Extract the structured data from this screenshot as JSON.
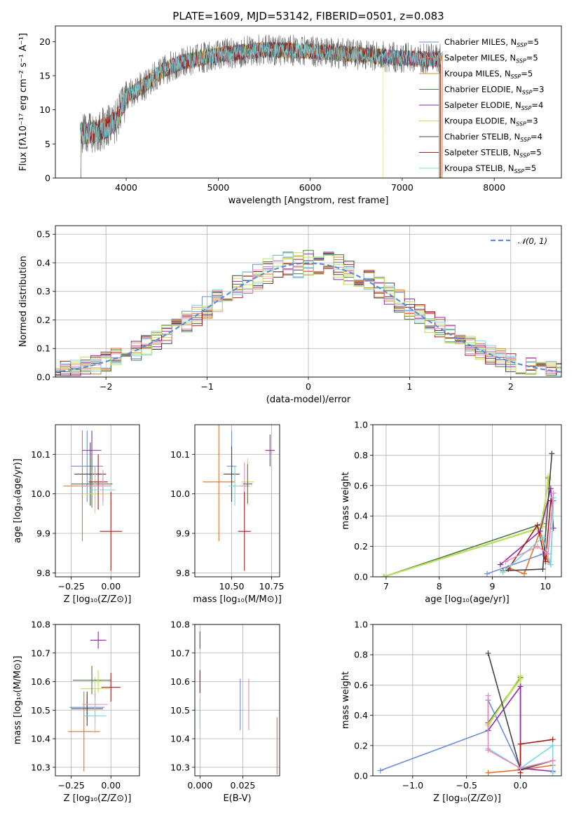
{
  "colors": {
    "grid": "#b0b0b0",
    "series": [
      "#6a8fd6",
      "#e8702a",
      "#d98f2c",
      "#4f7a4f",
      "#8e2aa8",
      "#c9dd5a",
      "#444444",
      "#a61b1b",
      "#79d8e0"
    ],
    "extra": [
      "#6fd6e0",
      "#e88ab8",
      "#b7e35a"
    ],
    "gaussian": "#5b8ed8"
  },
  "chart_data": [
    {
      "id": "spectrum",
      "type": "line",
      "title": "PLATE=1609, MJD=53142, FIBERID=0501, z=0.083",
      "xlabel": "wavelength [Angstrom, rest frame]",
      "ylabel": "Flux [fλ10⁻¹⁷ erg cm⁻² s⁻¹ A⁻¹]",
      "xlim": [
        3230,
        8730
      ],
      "ylim": [
        0,
        22.3
      ],
      "xticks": [
        4000,
        5000,
        6000,
        7000,
        8000
      ],
      "xtick_labels": [
        "4000",
        "5000",
        "6000",
        "7000",
        "8000"
      ],
      "yticks": [
        0,
        5,
        10,
        15,
        20
      ],
      "ytick_labels": [
        "0",
        "5",
        "10",
        "15",
        "20"
      ],
      "grid": false,
      "legend_position": "right",
      "continuum": {
        "x": [
          3500,
          3600,
          3700,
          3800,
          3900,
          4000,
          4100,
          4200,
          4300,
          4400,
          4500,
          4600,
          4700,
          4800,
          4900,
          5000,
          5200,
          5400,
          5600,
          5800,
          6000,
          6200,
          6400,
          6600,
          6800,
          7000,
          7200,
          7400
        ],
        "y": [
          6.5,
          6.6,
          7.0,
          7.5,
          8.5,
          11.8,
          12.8,
          13.6,
          14.7,
          15.8,
          16.4,
          17.0,
          17.2,
          17.5,
          17.8,
          18.0,
          18.4,
          18.7,
          18.8,
          18.7,
          18.6,
          18.4,
          18.2,
          18.0,
          17.8,
          17.6,
          17.5,
          17.4
        ]
      },
      "series": [
        {
          "name": "Chabrier MILES, N",
          "sub": "SSP",
          "suffix": "=5"
        },
        {
          "name": "Salpeter MILES, N",
          "sub": "SSP",
          "suffix": "=5"
        },
        {
          "name": "Kroupa MILES, N",
          "sub": "SSP",
          "suffix": "=5"
        },
        {
          "name": "Chabrier ELODIE, N",
          "sub": "SSP",
          "suffix": "=3"
        },
        {
          "name": "Salpeter ELODIE, N",
          "sub": "SSP",
          "suffix": "=4"
        },
        {
          "name": "Kroupa ELODIE, N",
          "sub": "SSP",
          "suffix": "=3"
        },
        {
          "name": "Chabrier STELIB, N",
          "sub": "SSP",
          "suffix": "=4"
        },
        {
          "name": "Salpeter STELIB, N",
          "sub": "SSP",
          "suffix": "=5"
        },
        {
          "name": "Kroupa STELIB, N",
          "sub": "SSP",
          "suffix": "=5"
        }
      ]
    },
    {
      "id": "residuals",
      "type": "histogram",
      "xlabel": "(data-model)/error",
      "ylabel": "Normed distribution",
      "xlim": [
        -2.5,
        2.5
      ],
      "ylim": [
        0,
        0.53
      ],
      "xticks": [
        -2,
        -1,
        0,
        1,
        2
      ],
      "xtick_labels": [
        "−2",
        "−1",
        "0",
        "1",
        "2"
      ],
      "yticks": [
        0,
        0.1,
        0.2,
        0.3,
        0.4,
        0.5
      ],
      "ytick_labels": [
        "0.0",
        "0.1",
        "0.2",
        "0.3",
        "0.4",
        "0.5"
      ],
      "grid": true,
      "legend_label": "𝒩(0, 1)",
      "legend_position": "top-right",
      "bin_width": 0.1
    },
    {
      "id": "age-vs-z",
      "type": "errorbar",
      "xlabel": "Z [log₁₀(Z/Z⊙)]",
      "ylabel": "age  [log₁₀(age/yr)]",
      "xlim": [
        -0.35,
        0.18
      ],
      "ylim": [
        9.79,
        10.175
      ],
      "xticks": [
        -0.25,
        0
      ],
      "xtick_labels": [
        "−0.25",
        "0.00"
      ],
      "yticks": [
        9.8,
        9.9,
        10.0,
        10.1
      ],
      "ytick_labels": [
        "9.8",
        "9.9",
        "10.0",
        "10.1"
      ],
      "grid": true,
      "points": [
        {
          "x": -0.18,
          "y": 10.02,
          "xerr": 0.12,
          "yerr": 0.14,
          "c": 1
        },
        {
          "x": -0.15,
          "y": 10.07,
          "xerr": 0.1,
          "yerr": 0.09,
          "c": 0
        },
        {
          "x": -0.12,
          "y": 10.11,
          "xerr": 0.06,
          "yerr": 0.05,
          "c": 4
        },
        {
          "x": -0.13,
          "y": 10.05,
          "xerr": 0.1,
          "yerr": 0.08,
          "c": 6
        },
        {
          "x": -0.12,
          "y": 10.025,
          "xerr": 0.13,
          "yerr": 0.06,
          "c": 3
        },
        {
          "x": -0.1,
          "y": 10.02,
          "xerr": 0.1,
          "yerr": 0.05,
          "c": 10
        },
        {
          "x": -0.1,
          "y": 10.0,
          "xerr": 0.08,
          "yerr": 0.05,
          "c": 5
        },
        {
          "x": -0.08,
          "y": 10.03,
          "xerr": 0.06,
          "yerr": 0.07,
          "c": 7
        },
        {
          "x": -0.05,
          "y": 10.01,
          "xerr": 0.08,
          "yerr": 0.04,
          "c": 8
        },
        {
          "x": -0.05,
          "y": 10.02,
          "xerr": 0.05,
          "yerr": 0.04,
          "c": 10
        },
        {
          "x": 0.0,
          "y": 9.905,
          "xerr": 0.07,
          "yerr": 0.1,
          "c": 7
        }
      ]
    },
    {
      "id": "age-vs-mass",
      "type": "errorbar",
      "xlabel": "mass [log₁₀(M/M⊙)]",
      "ylabel": "",
      "xlim": [
        10.27,
        10.8
      ],
      "ylim": [
        9.79,
        10.175
      ],
      "xticks": [
        10.5,
        10.75
      ],
      "xtick_labels": [
        "10.50",
        "10.75"
      ],
      "yticks": [
        9.8,
        9.9,
        10.0,
        10.1
      ],
      "ytick_labels": [
        "9.8",
        "9.9",
        "10.0",
        "10.1"
      ],
      "grid": true,
      "points": [
        {
          "x": 10.42,
          "y": 10.03,
          "xerr": 0.1,
          "yerr": 0.15,
          "c": 1
        },
        {
          "x": 10.5,
          "y": 10.07,
          "xerr": 0.03,
          "yerr": 0.09,
          "c": 0
        },
        {
          "x": 10.5,
          "y": 10.05,
          "xerr": 0.05,
          "yerr": 0.07,
          "c": 6
        },
        {
          "x": 10.52,
          "y": 10.02,
          "xerr": 0.04,
          "yerr": 0.05,
          "c": 8
        },
        {
          "x": 10.6,
          "y": 10.03,
          "xerr": 0.04,
          "yerr": 0.06,
          "c": 5
        },
        {
          "x": 10.58,
          "y": 10.02,
          "xerr": 0.03,
          "yerr": 0.06,
          "c": 10
        },
        {
          "x": 10.6,
          "y": 10.025,
          "xerr": 0.03,
          "yerr": 0.05,
          "c": 3
        },
        {
          "x": 10.58,
          "y": 9.905,
          "xerr": 0.04,
          "yerr": 0.1,
          "c": 7
        },
        {
          "x": 10.74,
          "y": 10.11,
          "xerr": 0.03,
          "yerr": 0.04,
          "c": 4
        }
      ]
    },
    {
      "id": "weight-vs-age",
      "type": "line",
      "xlabel": "age  [log₁₀(age/yr)]",
      "ylabel": "mass weight",
      "xlim": [
        6.75,
        10.3
      ],
      "ylim": [
        0,
        1.0
      ],
      "xticks": [
        7,
        8,
        9,
        10
      ],
      "xtick_labels": [
        "7",
        "8",
        "9",
        "10"
      ],
      "yticks": [
        0,
        0.2,
        0.4,
        0.6,
        0.8,
        1.0
      ],
      "ytick_labels": [
        "0.0",
        "0.2",
        "0.4",
        "0.6",
        "0.8",
        "1.0"
      ],
      "grid": true,
      "series": [
        {
          "c": 0,
          "points": [
            [
              8.9,
              0.02
            ],
            [
              9.95,
              0.15
            ],
            [
              10.1,
              0.08
            ],
            [
              10.15,
              0.5
            ]
          ]
        },
        {
          "c": 1,
          "points": [
            [
              9.3,
              0.06
            ],
            [
              9.6,
              0.02
            ],
            [
              9.9,
              0.3
            ],
            [
              10.05,
              0.1
            ]
          ]
        },
        {
          "c": 3,
          "points": [
            [
              6.95,
              0.0
            ],
            [
              9.95,
              0.35
            ],
            [
              10.05,
              0.65
            ]
          ]
        },
        {
          "c": 5,
          "points": [
            [
              6.95,
              0.0
            ],
            [
              9.95,
              0.33
            ],
            [
              10.05,
              0.66
            ]
          ]
        },
        {
          "c": 11,
          "points": [
            [
              6.97,
              0.0
            ],
            [
              9.9,
              0.32
            ],
            [
              10.07,
              0.64
            ]
          ]
        },
        {
          "c": 4,
          "points": [
            [
              9.15,
              0.08
            ],
            [
              9.9,
              0.3
            ],
            [
              10.1,
              0.58
            ],
            [
              10.15,
              0.32
            ]
          ]
        },
        {
          "c": 6,
          "points": [
            [
              9.2,
              0.04
            ],
            [
              9.95,
              0.05
            ],
            [
              10.12,
              0.81
            ]
          ]
        },
        {
          "c": 7,
          "points": [
            [
              9.3,
              0.05
            ],
            [
              9.85,
              0.34
            ],
            [
              10.0,
              0.1
            ],
            [
              10.1,
              0.5
            ]
          ]
        },
        {
          "c": 8,
          "points": [
            [
              9.2,
              0.03
            ],
            [
              9.95,
              0.26
            ],
            [
              10.1,
              0.08
            ],
            [
              10.15,
              0.52
            ]
          ]
        },
        {
          "c": 10,
          "points": [
            [
              9.25,
              0.1
            ],
            [
              9.85,
              0.2
            ],
            [
              10.05,
              0.15
            ],
            [
              10.15,
              0.55
            ]
          ]
        }
      ]
    },
    {
      "id": "mass-vs-z",
      "type": "errorbar",
      "xlabel": "Z [log₁₀(Z/Z⊙)]",
      "ylabel": "mass [log₁₀(M/M⊙)]",
      "xlim": [
        -0.35,
        0.18
      ],
      "ylim": [
        10.27,
        10.8
      ],
      "xticks": [
        -0.25,
        0
      ],
      "xtick_labels": [
        "−0.25",
        "0.00"
      ],
      "yticks": [
        10.3,
        10.4,
        10.5,
        10.6,
        10.7,
        10.8
      ],
      "ytick_labels": [
        "10.3",
        "10.4",
        "10.5",
        "10.6",
        "10.7",
        "10.8"
      ],
      "grid": true,
      "points": [
        {
          "x": -0.17,
          "y": 10.425,
          "xerr": 0.1,
          "yerr": 0.14,
          "c": 1
        },
        {
          "x": -0.15,
          "y": 10.51,
          "xerr": 0.11,
          "yerr": 0.04,
          "c": 0
        },
        {
          "x": -0.15,
          "y": 10.505,
          "xerr": 0.1,
          "yerr": 0.06,
          "c": 6
        },
        {
          "x": -0.1,
          "y": 10.575,
          "xerr": 0.09,
          "yerr": 0.04,
          "c": 5
        },
        {
          "x": -0.12,
          "y": 10.605,
          "xerr": 0.12,
          "yerr": 0.05,
          "c": 3
        },
        {
          "x": -0.1,
          "y": 10.52,
          "xerr": 0.08,
          "yerr": 0.05,
          "c": 10
        },
        {
          "x": -0.1,
          "y": 10.48,
          "xerr": 0.07,
          "yerr": 0.06,
          "c": 8
        },
        {
          "x": -0.08,
          "y": 10.6,
          "xerr": 0.03,
          "yerr": 0.04,
          "c": 11
        },
        {
          "x": -0.08,
          "y": 10.745,
          "xerr": 0.05,
          "yerr": 0.03,
          "c": 4
        },
        {
          "x": 0.0,
          "y": 10.58,
          "xerr": 0.06,
          "yerr": 0.05,
          "c": 7
        }
      ]
    },
    {
      "id": "mass-vs-ebv",
      "type": "errorbar",
      "xlabel": "E(B-V)",
      "ylabel": "",
      "xlim": [
        -0.003,
        0.0465
      ],
      "ylim": [
        10.27,
        10.8
      ],
      "xticks": [
        0,
        0.025
      ],
      "xtick_labels": [
        "0.000",
        "0.025"
      ],
      "yticks": [
        10.3,
        10.4,
        10.5,
        10.6,
        10.7,
        10.8
      ],
      "ytick_labels": [
        "10.3",
        "10.4",
        "10.5",
        "10.6",
        "10.7",
        "10.8"
      ],
      "grid": true,
      "points": [
        {
          "x": 0.0,
          "y": 10.745,
          "xerr": 0,
          "yerr": 0.03,
          "c": 4
        },
        {
          "x": 0.0,
          "y": 10.6,
          "xerr": 0,
          "yerr": 0.04,
          "c": 7
        },
        {
          "x": 0.0,
          "y": 10.49,
          "xerr": 0,
          "yerr": 0.05,
          "c": 10
        },
        {
          "x": 0.0,
          "y": 10.48,
          "xerr": 0,
          "yerr": 0.05,
          "c": 8
        },
        {
          "x": 0.0235,
          "y": 10.52,
          "xerr": 0,
          "yerr": 0.09,
          "c": 0
        },
        {
          "x": 0.0285,
          "y": 10.52,
          "xerr": 0,
          "yerr": 0.09,
          "c": 10
        },
        {
          "x": 0.045,
          "y": 10.375,
          "xerr": 0,
          "yerr": 0.1,
          "c": 1
        }
      ]
    },
    {
      "id": "weight-vs-z",
      "type": "line",
      "xlabel": "Z [log₁₀(Z/Z⊙)]",
      "ylabel": "mass weight",
      "xlim": [
        -1.37,
        0.38
      ],
      "ylim": [
        0,
        1.0
      ],
      "xticks": [
        -1.0,
        -0.5,
        0.0
      ],
      "xtick_labels": [
        "−1.0",
        "−0.5",
        "0.0"
      ],
      "yticks": [
        0,
        0.2,
        0.4,
        0.6,
        0.8,
        1.0
      ],
      "ytick_labels": [
        "0.0",
        "0.2",
        "0.4",
        "0.6",
        "0.8",
        "1.0"
      ],
      "grid": true,
      "series": [
        {
          "c": 0,
          "points": [
            [
              -1.3,
              0.035
            ],
            [
              -0.3,
              0.3
            ],
            [
              -0.3,
              0.5
            ],
            [
              0.0,
              0.05
            ],
            [
              0.3,
              0.1
            ]
          ]
        },
        {
          "c": 1,
          "points": [
            [
              -0.3,
              0.02
            ],
            [
              0.0,
              0.04
            ],
            [
              0.3,
              0.07
            ]
          ]
        },
        {
          "c": 3,
          "points": [
            [
              -0.3,
              0.35
            ],
            [
              0.0,
              0.65
            ],
            [
              0.0,
              0.05
            ]
          ]
        },
        {
          "c": 5,
          "points": [
            [
              -0.3,
              0.33
            ],
            [
              0.0,
              0.66
            ],
            [
              0.0,
              0.05
            ]
          ]
        },
        {
          "c": 11,
          "points": [
            [
              -0.3,
              0.34
            ],
            [
              0.0,
              0.64
            ]
          ]
        },
        {
          "c": 4,
          "points": [
            [
              -0.3,
              0.3
            ],
            [
              0.0,
              0.59
            ],
            [
              0.0,
              0.05
            ],
            [
              0.3,
              0.03
            ]
          ]
        },
        {
          "c": 6,
          "points": [
            [
              -0.3,
              0.81
            ],
            [
              0.0,
              0.04
            ],
            [
              0.3,
              0.1
            ]
          ]
        },
        {
          "c": 7,
          "points": [
            [
              0.0,
              0.02
            ],
            [
              0.0,
              0.21
            ],
            [
              0.3,
              0.24
            ]
          ]
        },
        {
          "c": 8,
          "points": [
            [
              -0.3,
              0.18
            ],
            [
              0.0,
              0.05
            ],
            [
              0.3,
              0.2
            ],
            [
              0.3,
              0.02
            ]
          ]
        },
        {
          "c": 10,
          "points": [
            [
              -0.3,
              0.53
            ],
            [
              -0.3,
              0.17
            ],
            [
              0.0,
              0.05
            ],
            [
              0.3,
              0.1
            ]
          ]
        }
      ]
    }
  ]
}
